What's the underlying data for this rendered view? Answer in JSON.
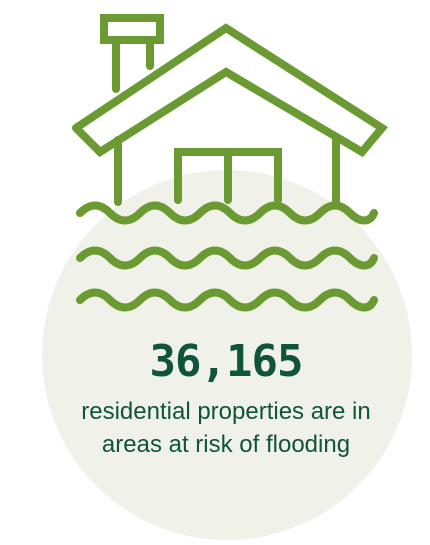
{
  "colors": {
    "icon_green": "#6a9a31",
    "text_green": "#10543a",
    "circle_bg": "#f0f2ea"
  },
  "icon": "flooded-house-icon",
  "stat": {
    "number": "36,165",
    "caption": "residential properties are in areas at risk of flooding"
  }
}
